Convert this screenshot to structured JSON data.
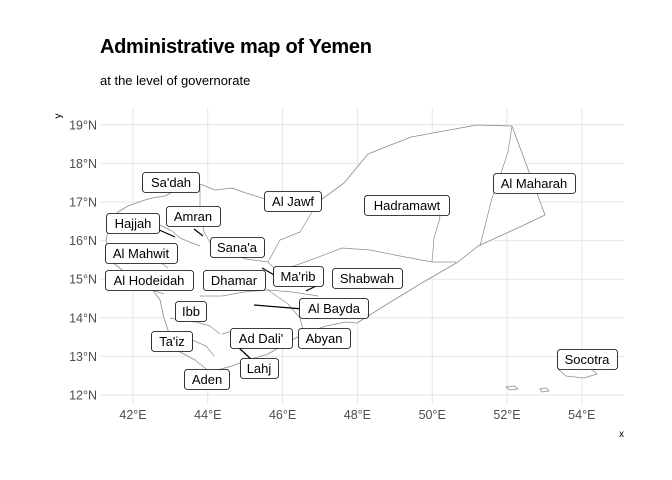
{
  "title": "Administrative map of Yemen",
  "subtitle": "at the level of governorate",
  "axes": {
    "x_label": "x",
    "y_label": "y",
    "x_ticks": [
      "42°E",
      "44°E",
      "46°E",
      "48°E",
      "50°E",
      "52°E",
      "54°E"
    ],
    "y_ticks": [
      "12°N",
      "13°N",
      "14°N",
      "15°N",
      "16°N",
      "17°N",
      "18°N",
      "19°N"
    ]
  },
  "chart_data": {
    "type": "map",
    "region": "Yemen",
    "level": "governorate",
    "x_range_lon": [
      41.0,
      55.4
    ],
    "y_range_lat": [
      11.8,
      19.4
    ],
    "grid": true,
    "labels": [
      {
        "name": "Sa'dah",
        "lon": 43.0,
        "lat": 17.5
      },
      {
        "name": "Al Jawf",
        "lon": 45.3,
        "lat": 17.0
      },
      {
        "name": "Hadramawt",
        "lon": 49.2,
        "lat": 16.9
      },
      {
        "name": "Al Maharah",
        "lon": 52.7,
        "lat": 17.5
      },
      {
        "name": "Amran",
        "lon": 43.6,
        "lat": 16.6
      },
      {
        "name": "Hajjah",
        "lon": 42.7,
        "lat": 16.5
      },
      {
        "name": "Sana'a",
        "lon": 44.5,
        "lat": 15.9
      },
      {
        "name": "Al Mahwit",
        "lon": 42.6,
        "lat": 15.7
      },
      {
        "name": "Ma'rib",
        "lon": 45.9,
        "lat": 15.1
      },
      {
        "name": "Shabwah",
        "lon": 47.6,
        "lat": 15.0
      },
      {
        "name": "Al Hodeidah",
        "lon": 42.8,
        "lat": 15.0
      },
      {
        "name": "Dhamar",
        "lon": 44.8,
        "lat": 15.0
      },
      {
        "name": "Ibb",
        "lon": 43.5,
        "lat": 14.2
      },
      {
        "name": "Al Bayda",
        "lon": 47.4,
        "lat": 14.3
      },
      {
        "name": "Ta'iz",
        "lon": 43.0,
        "lat": 13.4
      },
      {
        "name": "Ad Dali'",
        "lon": 45.1,
        "lat": 13.5
      },
      {
        "name": "Abyan",
        "lon": 47.2,
        "lat": 13.5
      },
      {
        "name": "Lahj",
        "lon": 45.4,
        "lat": 12.8
      },
      {
        "name": "Aden",
        "lon": 44.0,
        "lat": 12.4
      },
      {
        "name": "Socotra",
        "lon": 54.5,
        "lat": 12.9
      }
    ]
  }
}
